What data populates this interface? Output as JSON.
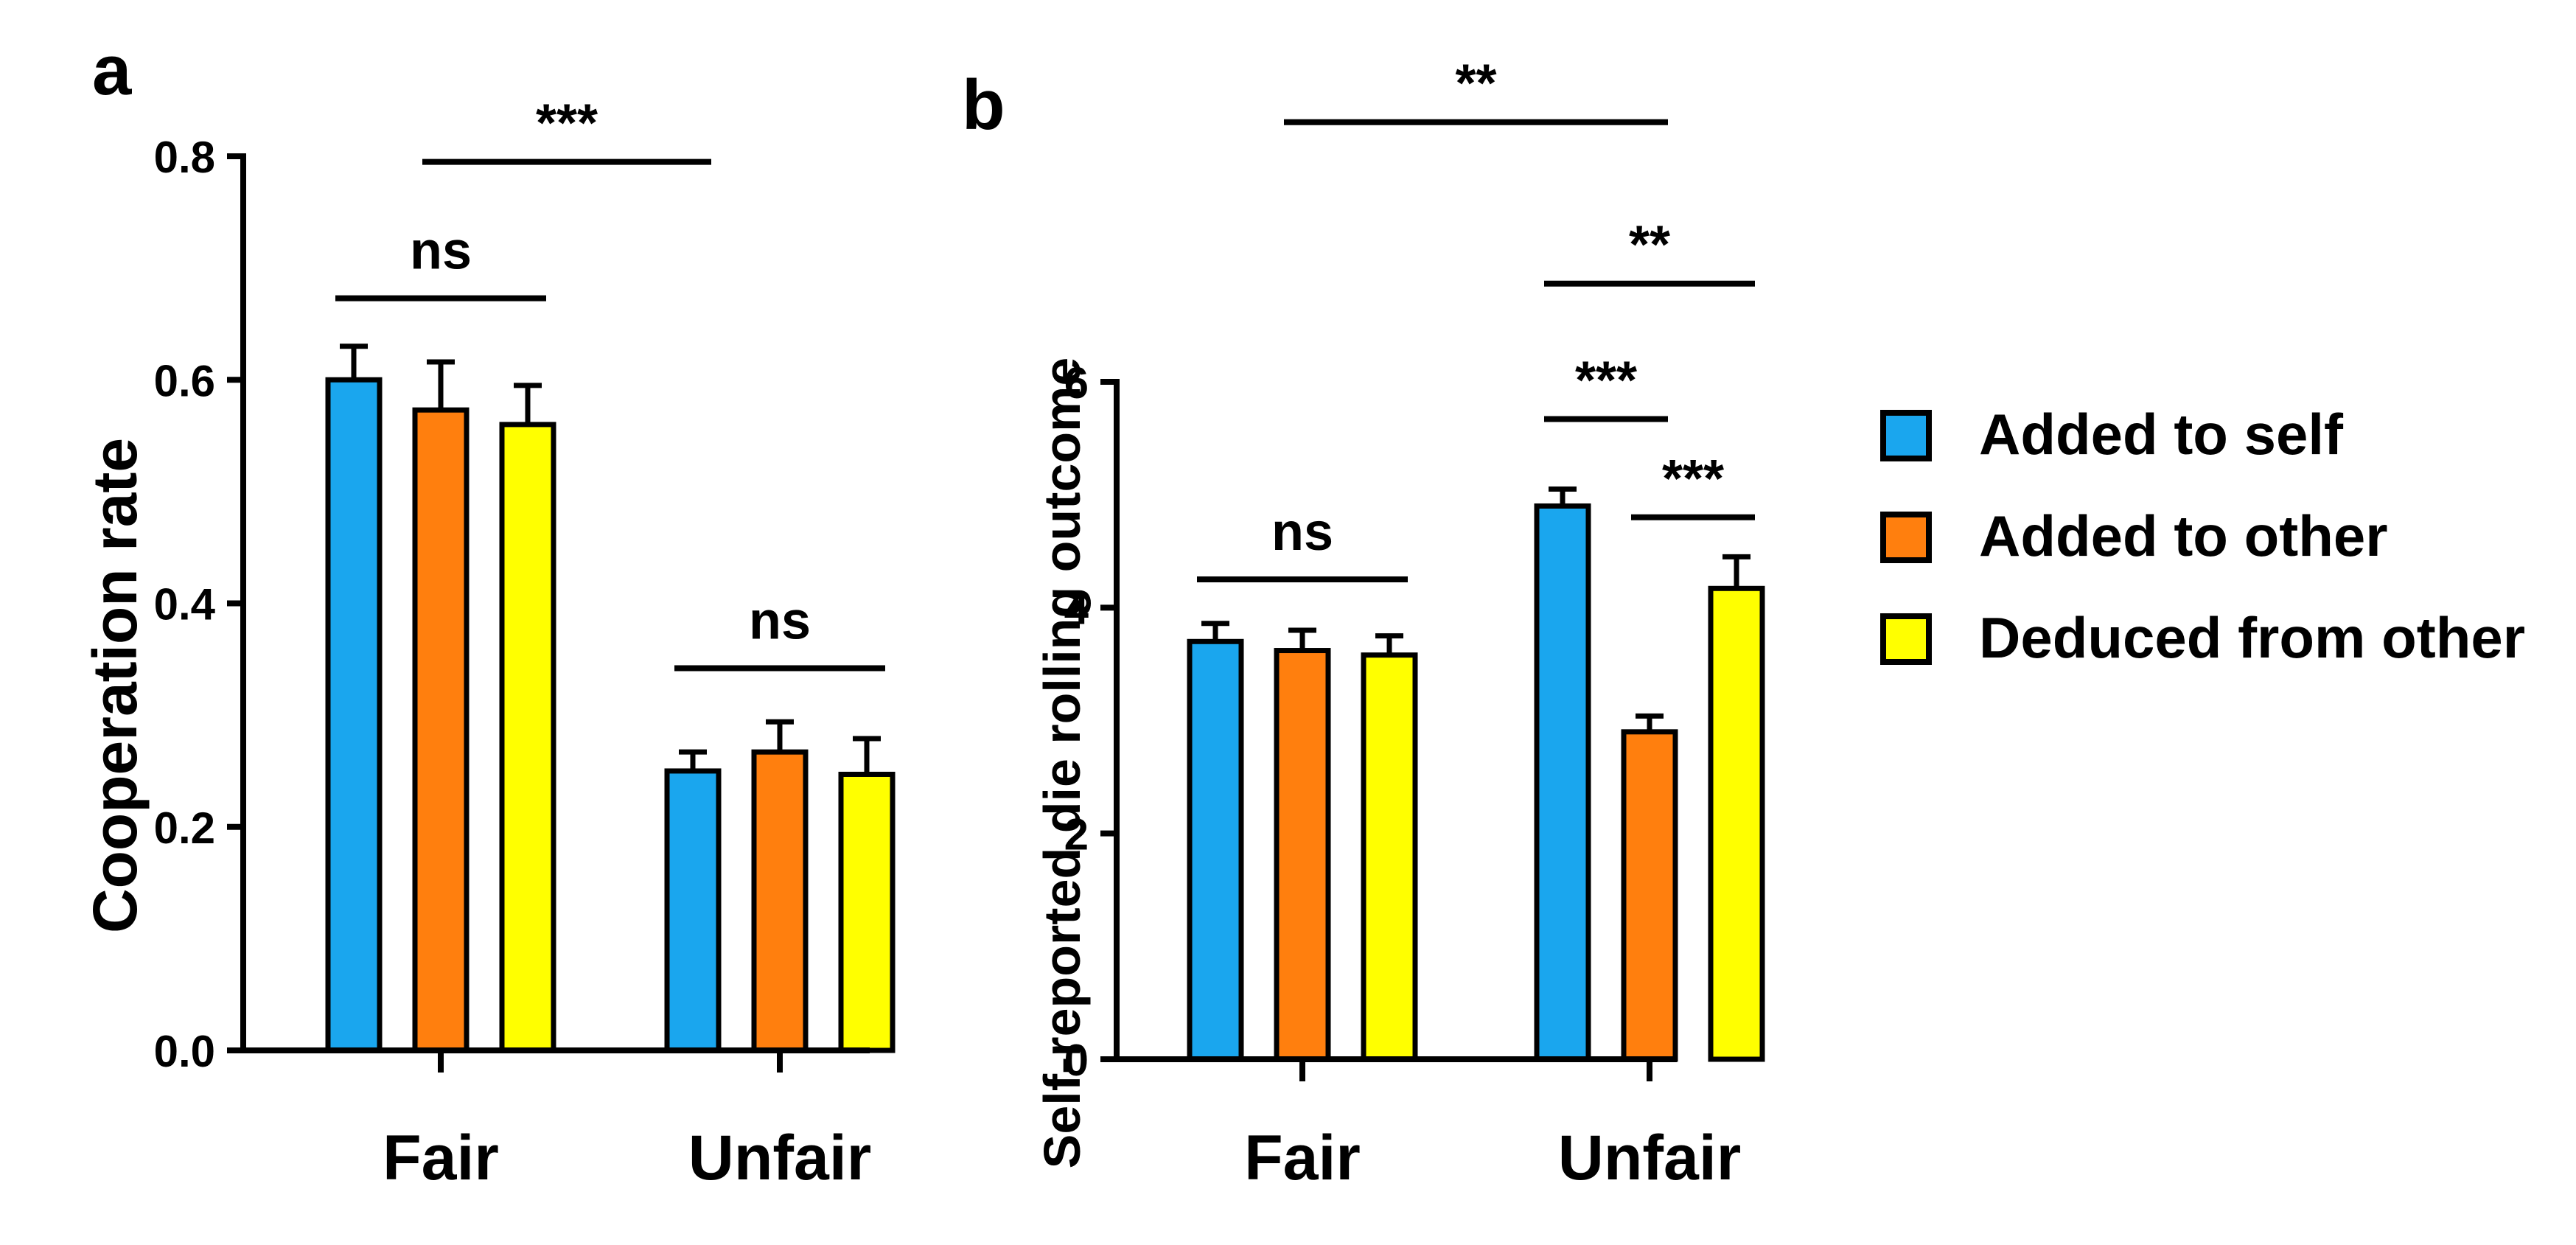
{
  "colors": {
    "added_to_self": "#1aa6ee",
    "added_to_other": "#ff7f0e",
    "deduced_from_other": "#ffff00",
    "outline": "#000000"
  },
  "legend": {
    "items": [
      {
        "label": "Added to self",
        "color": "#1aa6ee"
      },
      {
        "label": "Added to other",
        "color": "#ff7f0e"
      },
      {
        "label": "Deduced  from other",
        "color": "#ffff00"
      }
    ]
  },
  "chart_data": [
    {
      "panel": "a",
      "type": "bar",
      "ylabel": "Cooperation rate",
      "ylim": [
        0,
        0.8
      ],
      "yticks": [
        "0.0",
        "0.2",
        "0.4",
        "0.6",
        "0.8"
      ],
      "ytick_values": [
        0,
        0.2,
        0.4,
        0.6,
        0.8
      ],
      "categories": [
        "Fair",
        "Unfair"
      ],
      "series": [
        {
          "name": "Added to self",
          "values": [
            0.6,
            0.25
          ],
          "errors": [
            0.03,
            0.017
          ]
        },
        {
          "name": "Added to other",
          "values": [
            0.573,
            0.267
          ],
          "errors": [
            0.043,
            0.027
          ]
        },
        {
          "name": "Deduced  from other",
          "values": [
            0.56,
            0.247
          ],
          "errors": [
            0.035,
            0.032
          ]
        }
      ],
      "significance": [
        {
          "label": "ns",
          "from": {
            "category": 0,
            "series": 0
          },
          "to": {
            "category": 0,
            "series": 2
          },
          "y": 0.673
        },
        {
          "label": "ns",
          "from": {
            "category": 1,
            "series": 0
          },
          "to": {
            "category": 1,
            "series": 2
          },
          "y": 0.342
        },
        {
          "label": "***",
          "from": {
            "category": 0,
            "series": 1
          },
          "to": {
            "category": 1,
            "series": 0
          },
          "y": 0.795
        }
      ]
    },
    {
      "panel": "b",
      "type": "bar",
      "ylabel": "Self-reported die rolling outcome",
      "ylim": [
        0,
        6
      ],
      "yticks": [
        "0",
        "2",
        "4",
        "6"
      ],
      "ytick_values": [
        0,
        2,
        4,
        6
      ],
      "categories": [
        "Fair",
        "Unfair"
      ],
      "series": [
        {
          "name": "Added to self",
          "values": [
            3.7,
            4.9
          ],
          "errors": [
            0.16,
            0.15
          ]
        },
        {
          "name": "Added to other",
          "values": [
            3.62,
            2.9
          ],
          "errors": [
            0.18,
            0.14
          ]
        },
        {
          "name": "Deduced  from other",
          "values": [
            3.58,
            4.17
          ],
          "errors": [
            0.17,
            0.28
          ]
        }
      ],
      "significance": [
        {
          "label": "ns",
          "from": {
            "category": 0,
            "series": 0
          },
          "to": {
            "category": 0,
            "series": 2
          },
          "y": 4.25
        },
        {
          "label": "***",
          "from": {
            "category": 1,
            "series": 0
          },
          "to": {
            "category": 1,
            "series": 1
          },
          "y": 5.67
        },
        {
          "label": "***",
          "from": {
            "category": 1,
            "series": 1
          },
          "to": {
            "category": 1,
            "series": 2
          },
          "y": 4.8
        },
        {
          "label": "**",
          "from": {
            "category": 1,
            "series": 0
          },
          "to": {
            "category": 1,
            "series": 2
          },
          "y": 6.87
        },
        {
          "label": "**",
          "from": {
            "category": 0,
            "series": 1
          },
          "to": {
            "category": 1,
            "series": 1
          },
          "y": 8.3
        }
      ]
    }
  ]
}
